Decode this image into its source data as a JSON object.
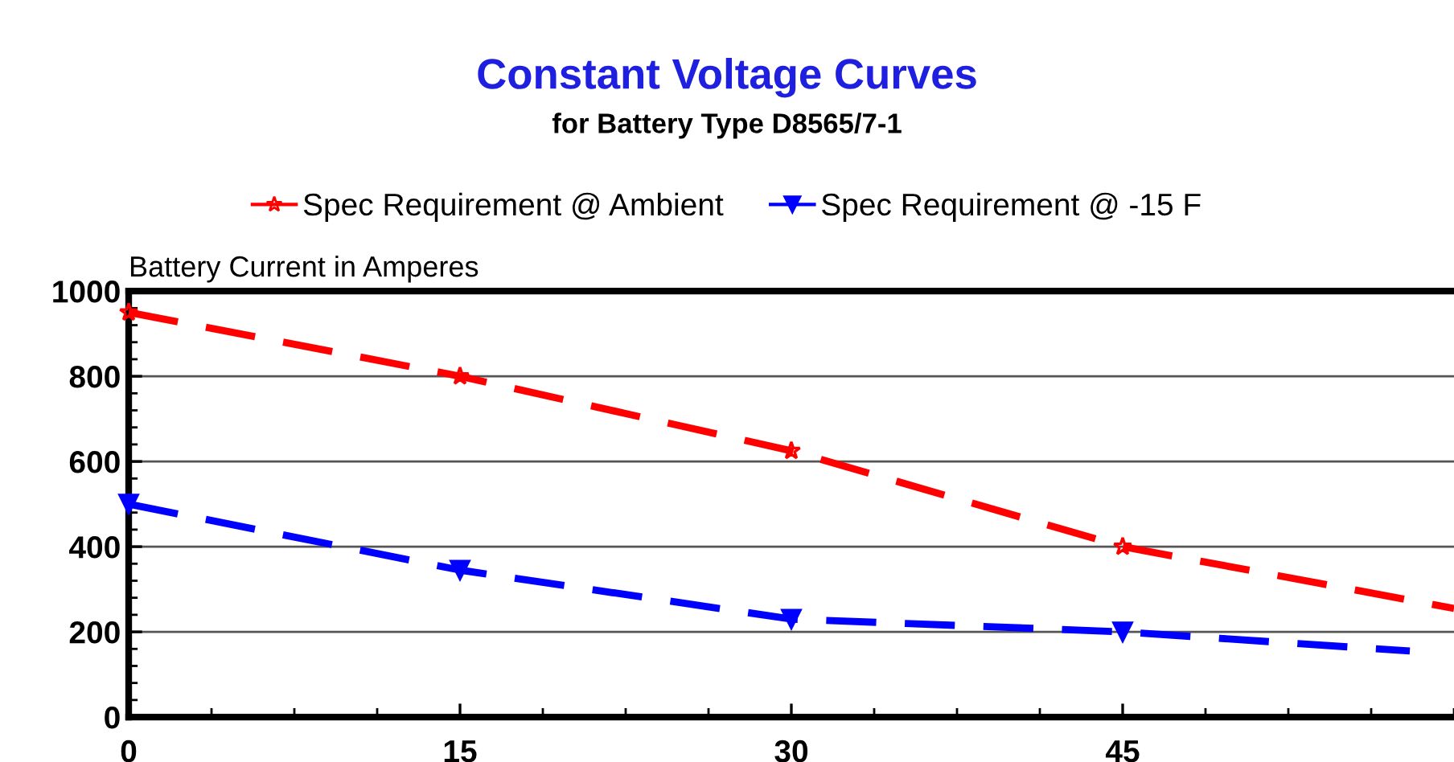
{
  "chart_data": {
    "type": "line",
    "title": "Constant Voltage Curves",
    "subtitle": "for Battery Type D8565/7-1",
    "ylabel": "Battery Current in Amperes",
    "x": [
      0,
      15,
      30,
      45,
      60
    ],
    "series": [
      {
        "name": "Spec Requirement @ Ambient",
        "color": "#ff0000",
        "marker": "star",
        "values": [
          950,
          800,
          625,
          400,
          255
        ]
      },
      {
        "name": "Spec Requirement @ -15 F",
        "color": "#0000ff",
        "marker": "triangle",
        "x": [
          0,
          15,
          30,
          45,
          58
        ],
        "values": [
          500,
          345,
          230,
          200,
          155
        ]
      }
    ],
    "xlim": [
      0,
      60
    ],
    "xticks": [
      0,
      15,
      30,
      45
    ],
    "ylim": [
      0,
      1000
    ],
    "yticks": [
      0,
      200,
      400,
      600,
      800,
      1000
    ],
    "grid": "y",
    "legend": "top",
    "line_style": "dashed"
  }
}
